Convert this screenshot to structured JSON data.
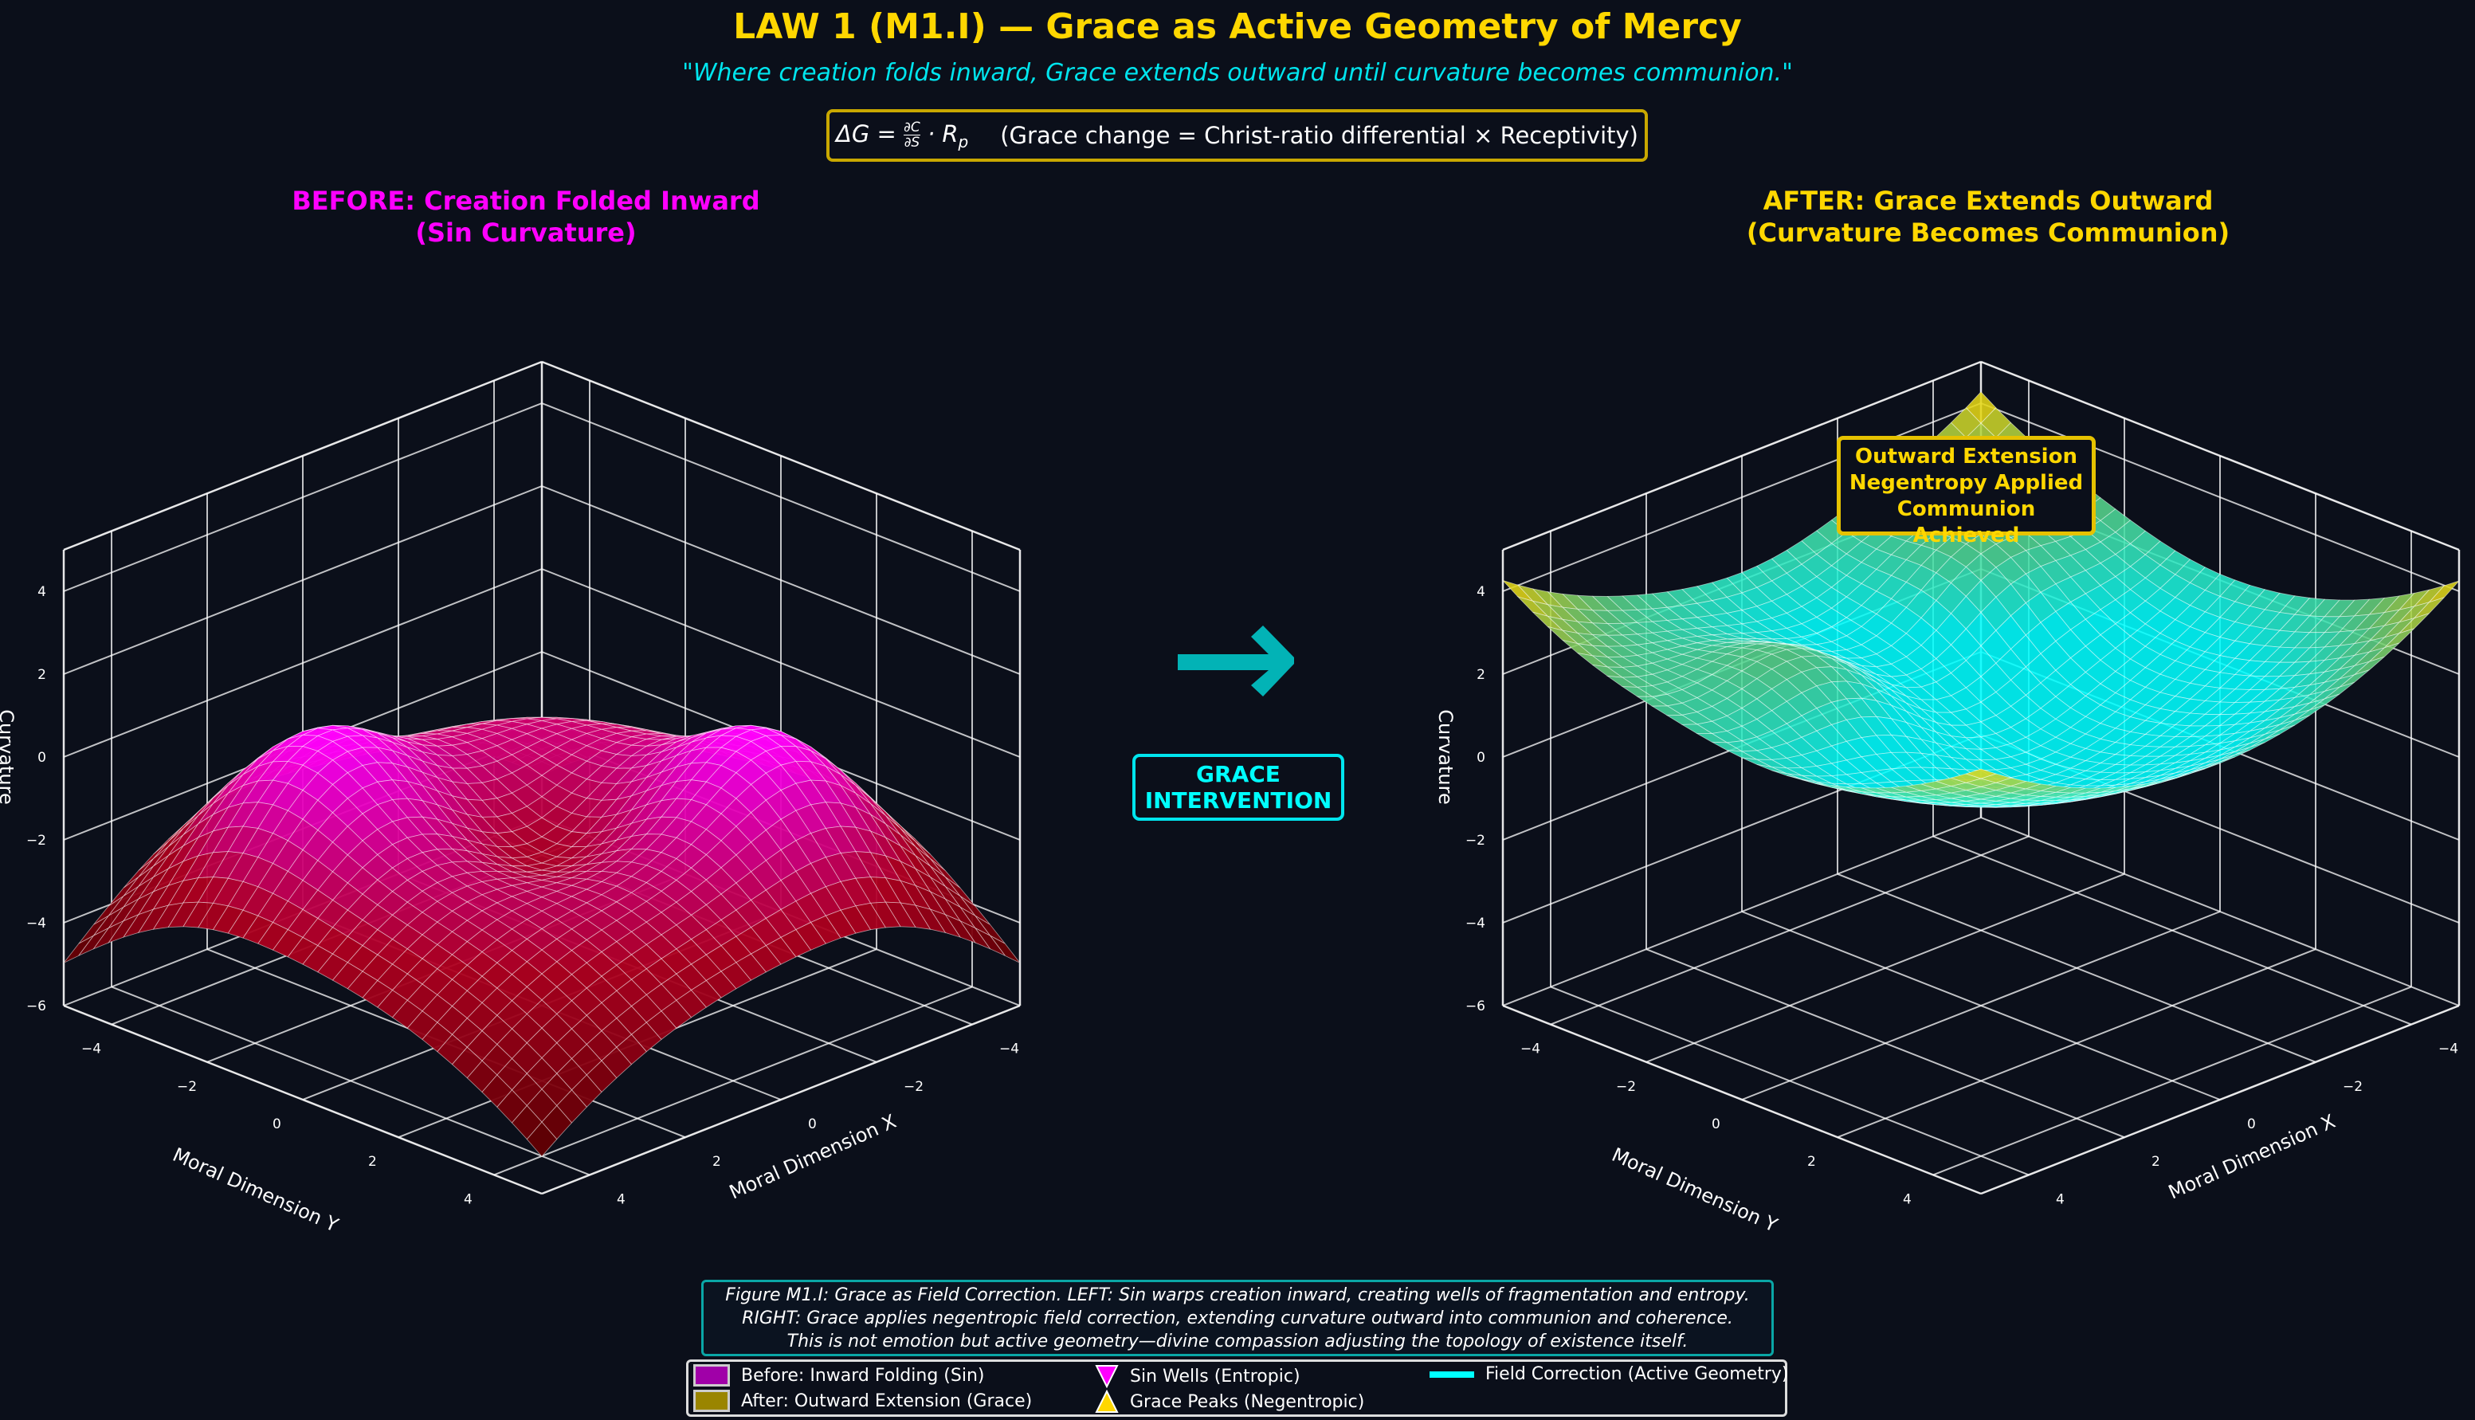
{
  "header": {
    "title": "LAW 1 (M1.I) — Grace as Active Geometry of Mercy",
    "subtitle": "\"Where creation folds inward, Grace extends outward until curvature becomes communion.\"",
    "formula": {
      "lhs": "ΔG =",
      "num": "∂C",
      "den": "∂S",
      "rhs": "· R",
      "sub": "p",
      "explanation": "(Grace change = Christ-ratio differential × Receptivity)"
    }
  },
  "middle": {
    "arrow_icon": "right-arrow-icon",
    "label_line1": "GRACE",
    "label_line2": "INTERVENTION"
  },
  "annotation": {
    "line1": "Outward Extension",
    "line2": "Negentropy Applied",
    "line3": "Communion Achieved"
  },
  "caption": {
    "line1": "Figure M1.I: Grace as Field Correction. LEFT: Sin warps creation inward, creating wells of fragmentation and entropy.",
    "line2": "RIGHT: Grace applies negentropic field correction, extending curvature outward into communion and coherence.",
    "line3": "This is not emotion but active geometry—divine compassion adjusting the topology of existence itself."
  },
  "legend": {
    "items": [
      {
        "label": "Before: Inward Folding (Sin)",
        "color": "#a000a8",
        "marker": "patch"
      },
      {
        "label": "After: Outward Extension (Grace)",
        "color": "#9a8500",
        "marker": "patch"
      },
      {
        "label": "Sin Wells (Entropic)",
        "color": "#ff00ff",
        "marker": "down-triangle"
      },
      {
        "label": "Grace Peaks (Negentropic)",
        "color": "#FFD700",
        "marker": "up-triangle"
      },
      {
        "label": "Field Correction (Active Geometry)",
        "color": "#00ffff",
        "marker": "line"
      }
    ]
  },
  "colors": {
    "background": "#0b0f1a",
    "gold": "#FFD700",
    "magenta": "#ff00ff",
    "cyan": "#00ffff"
  },
  "chart_data": [
    {
      "type": "surface",
      "title_line1": "BEFORE: Creation Folded Inward",
      "title_line2": "(Sin Curvature)",
      "xlabel": "Moral Dimension X",
      "ylabel": "Moral Dimension Y",
      "zlabel": "Curvature",
      "xticks": [
        -4,
        -2,
        0,
        2,
        4
      ],
      "yticks": [
        -4,
        -2,
        0,
        2,
        4
      ],
      "zticks": [
        -6,
        -4,
        -2,
        0,
        2,
        4
      ],
      "xlim": [
        -5,
        5
      ],
      "ylim": [
        -5,
        5
      ],
      "zlim": [
        -6,
        5
      ],
      "colormap": [
        "#5a0000",
        "#b00020",
        "#ff00ff"
      ],
      "grid": true
    },
    {
      "type": "surface",
      "title_line1": "AFTER: Grace Extends Outward",
      "title_line2": "(Curvature Becomes Communion)",
      "xlabel": "Moral Dimension X",
      "ylabel": "Moral Dimension Y",
      "zlabel": "Curvature",
      "xticks": [
        -4,
        -2,
        0,
        2,
        4
      ],
      "yticks": [
        -4,
        -2,
        0,
        2,
        4
      ],
      "zticks": [
        -6,
        -4,
        -2,
        0,
        2,
        4
      ],
      "xlim": [
        -5,
        5
      ],
      "ylim": [
        -5,
        5
      ],
      "zlim": [
        -6,
        5
      ],
      "colormap": [
        "#00ffff",
        "#60d080",
        "#FFD700"
      ],
      "grid": true
    }
  ]
}
